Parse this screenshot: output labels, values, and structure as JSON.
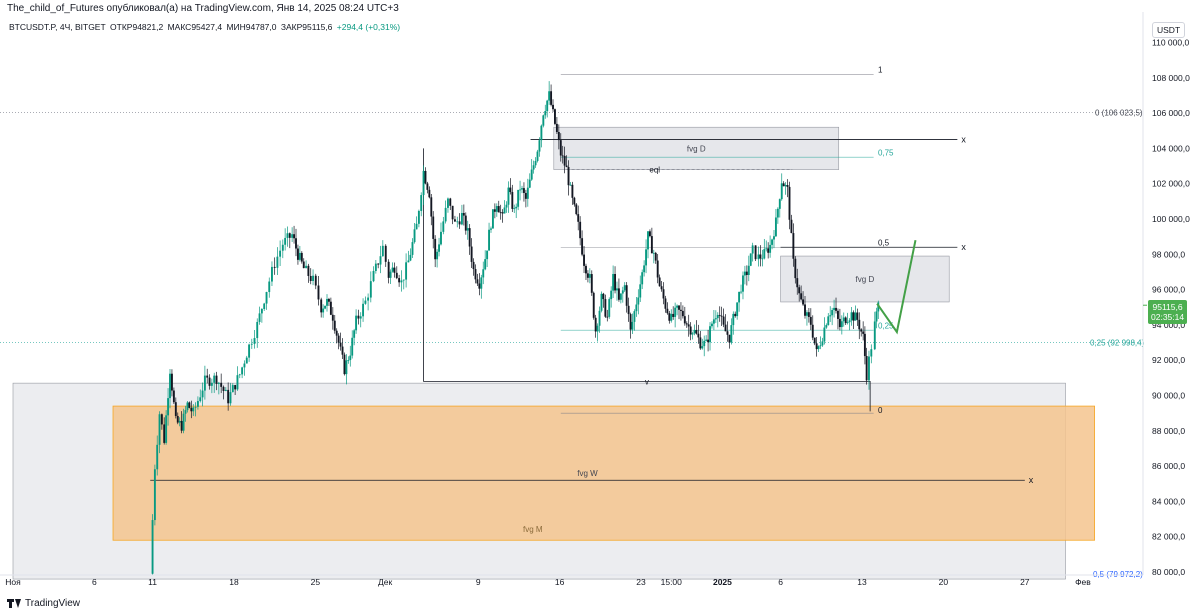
{
  "caption": "The_child_of_Futures опубликовал(а) на TradingView.com, Янв 14, 2025 08:24 UTC+3",
  "header": {
    "symbol": "BTCUSDT.P, 4Ч, BITGET",
    "open": "ОТКР94821,2",
    "high": "МАКС95427,4",
    "low": "МИН94787,0",
    "close": "ЗАКР95115,6",
    "change": "+294,4 (+0,31%)"
  },
  "currency": "USDT",
  "price_badge": {
    "price": "95115,6",
    "countdown": "02:35:14"
  },
  "footer": {
    "brand": "TradingView"
  },
  "colors": {
    "up": "#089981",
    "down": "#131722",
    "fvg_m_fill": "#f5c48e",
    "fvg_m_stroke": "#f5a623",
    "zone_fill": "#e6e7eb",
    "zone_stroke": "#9598a1",
    "projection": "#43a047",
    "fib_green": "#26a69a"
  },
  "chart_data": {
    "type": "candlestick",
    "ylim": [
      80000,
      112000
    ],
    "y_ticks": [
      80000,
      82000,
      84000,
      86000,
      88000,
      90000,
      92000,
      94000,
      96000,
      98000,
      100000,
      102000,
      104000,
      106000,
      108000,
      110000
    ],
    "y_tick_labels": [
      "80 000,0",
      "82 000,0",
      "84 000,0",
      "86 000,0",
      "88 000,0",
      "90 000,0",
      "92 000,0",
      "94 000,0",
      "96 000,0",
      "98 000,0",
      "100 000,0",
      "102 000,0",
      "104 000,0",
      "106 000,0",
      "108 000,0",
      "110 000,0"
    ],
    "x_ticks": [
      {
        "label": "Ноя",
        "t": 0
      },
      {
        "label": "6",
        "t": 7
      },
      {
        "label": "11",
        "t": 12
      },
      {
        "label": "18",
        "t": 19
      },
      {
        "label": "25",
        "t": 26
      },
      {
        "label": "Дек",
        "t": 32
      },
      {
        "label": "9",
        "t": 40
      },
      {
        "label": "16",
        "t": 47
      },
      {
        "label": "23",
        "t": 54
      },
      {
        "label": "15:00",
        "t": 56.6
      },
      {
        "label": "2025",
        "t": 61
      },
      {
        "label": "6",
        "t": 66
      },
      {
        "label": "13",
        "t": 73
      },
      {
        "label": "20",
        "t": 80
      },
      {
        "label": "27",
        "t": 87
      },
      {
        "label": "Фев",
        "t": 92
      }
    ],
    "path": [
      [
        11.8,
        79900
      ],
      [
        12.2,
        86000
      ],
      [
        12.6,
        89000
      ],
      [
        13.0,
        87500
      ],
      [
        13.5,
        91500
      ],
      [
        14.0,
        88500
      ],
      [
        14.5,
        88300
      ],
      [
        15.0,
        89500
      ],
      [
        15.5,
        89000
      ],
      [
        16.5,
        90800
      ],
      [
        17.5,
        91000
      ],
      [
        18.5,
        89800
      ],
      [
        19.5,
        91200
      ],
      [
        20.3,
        92800
      ],
      [
        21.0,
        94000
      ],
      [
        21.8,
        96000
      ],
      [
        22.5,
        97500
      ],
      [
        23.2,
        98600
      ],
      [
        24.0,
        99100
      ],
      [
        24.5,
        98000
      ],
      [
        25.0,
        97200
      ],
      [
        25.8,
        96500
      ],
      [
        26.5,
        95000
      ],
      [
        27.0,
        95300
      ],
      [
        27.5,
        94500
      ],
      [
        28.0,
        93000
      ],
      [
        28.5,
        91500
      ],
      [
        29.0,
        92500
      ],
      [
        29.5,
        94200
      ],
      [
        30.3,
        95300
      ],
      [
        31.0,
        96800
      ],
      [
        31.8,
        98400
      ],
      [
        32.3,
        96800
      ],
      [
        32.8,
        97300
      ],
      [
        33.4,
        96400
      ],
      [
        34.0,
        97600
      ],
      [
        34.7,
        99600
      ],
      [
        35.3,
        102700
      ],
      [
        35.8,
        101500
      ],
      [
        36.3,
        97600
      ],
      [
        36.8,
        99300
      ],
      [
        37.4,
        101000
      ],
      [
        38.0,
        99700
      ],
      [
        38.6,
        100200
      ],
      [
        39.1,
        99200
      ],
      [
        39.6,
        97100
      ],
      [
        40.1,
        96400
      ],
      [
        40.6,
        97800
      ],
      [
        41.1,
        99800
      ],
      [
        41.6,
        101000
      ],
      [
        42.1,
        100000
      ],
      [
        42.6,
        101600
      ],
      [
        43.1,
        100400
      ],
      [
        43.6,
        101800
      ],
      [
        44.1,
        101100
      ],
      [
        44.6,
        102600
      ],
      [
        45.1,
        104000
      ],
      [
        45.6,
        106100
      ],
      [
        46.1,
        107000
      ],
      [
        46.6,
        105400
      ],
      [
        47.1,
        103700
      ],
      [
        47.6,
        102800
      ],
      [
        48.1,
        101000
      ],
      [
        48.6,
        99600
      ],
      [
        49.1,
        97600
      ],
      [
        49.6,
        96600
      ],
      [
        50.1,
        93700
      ],
      [
        50.6,
        95500
      ],
      [
        51.1,
        94400
      ],
      [
        51.6,
        96700
      ],
      [
        52.1,
        95300
      ],
      [
        52.6,
        96200
      ],
      [
        53.1,
        93600
      ],
      [
        53.6,
        95300
      ],
      [
        54.1,
        96900
      ],
      [
        54.6,
        99000
      ],
      [
        55.1,
        98100
      ],
      [
        55.6,
        96200
      ],
      [
        56.1,
        95100
      ],
      [
        56.6,
        94300
      ],
      [
        57.1,
        94800
      ],
      [
        57.6,
        94600
      ],
      [
        58.1,
        93900
      ],
      [
        58.6,
        93600
      ],
      [
        59.1,
        93000
      ],
      [
        59.6,
        92900
      ],
      [
        60.1,
        94100
      ],
      [
        60.6,
        94900
      ],
      [
        61.1,
        93800
      ],
      [
        61.6,
        93300
      ],
      [
        62.1,
        94800
      ],
      [
        62.6,
        96200
      ],
      [
        63.1,
        97000
      ],
      [
        63.6,
        98200
      ],
      [
        64.1,
        97800
      ],
      [
        64.6,
        98000
      ],
      [
        65.1,
        98500
      ],
      [
        65.6,
        99800
      ],
      [
        66.1,
        102200
      ],
      [
        66.6,
        101600
      ],
      [
        67.1,
        97500
      ],
      [
        67.6,
        95700
      ],
      [
        68.1,
        94600
      ],
      [
        68.6,
        94100
      ],
      [
        69.1,
        92400
      ],
      [
        69.6,
        93400
      ],
      [
        70.1,
        94700
      ],
      [
        70.6,
        94900
      ],
      [
        71.1,
        93900
      ],
      [
        71.6,
        94400
      ],
      [
        72.1,
        94600
      ],
      [
        72.6,
        94300
      ],
      [
        73.1,
        93300
      ],
      [
        73.4,
        91200
      ],
      [
        73.8,
        92800
      ],
      [
        74.1,
        94000
      ],
      [
        74.4,
        95100
      ]
    ],
    "annotations": {
      "fvg_M": {
        "label": "fvg M",
        "t0": 8.6,
        "t1": 93,
        "p_top": 89400,
        "p_bot": 81800
      },
      "fvg_W": {
        "label": "fvg W",
        "t0": 11.8,
        "t1": 87,
        "p": 85200,
        "end": "x"
      },
      "fvg_D_top": {
        "label": "fvg D",
        "t0": 46.5,
        "t1": 71,
        "p_top": 105200,
        "p_bot": 102800
      },
      "fvg_D_right": {
        "label": "fvg D",
        "t0": 66,
        "t1": 80.5,
        "p_top": 97900,
        "p_bot": 95300
      },
      "grey_zone": {
        "t0": 0,
        "t1": 90.5,
        "p_top": 90700,
        "p_bot": 79600
      },
      "line_x_top": {
        "t0": 44.5,
        "t1": 81.2,
        "p": 104500,
        "end": "x"
      },
      "line_x_mid": {
        "t0": 66,
        "t1": 81.2,
        "p": 98400,
        "end": "x"
      },
      "eql": {
        "label": "eql",
        "t0": 47.6,
        "t1": 67,
        "p": 102800
      },
      "v_line": {
        "label": "v",
        "t0": 35.3,
        "t1": 73.7,
        "p": 90800,
        "bracket_top": 104000
      },
      "dotted_top": {
        "price": 106023.5,
        "label": "0 (106 023,5)"
      },
      "dotted_025": {
        "price": 92998.4,
        "label": "0,25 (92 998,4)"
      },
      "dotted_05_bottom": {
        "label": "0,5 (79 972,2)"
      },
      "fib_labels": [
        {
          "label": "1",
          "t": 74.2,
          "p": 108300
        },
        {
          "label": "0,75",
          "t": 74.2,
          "p": 103600,
          "color": "green"
        },
        {
          "label": "0,5",
          "t": 74.2,
          "p": 98500
        },
        {
          "label": "0,25",
          "t": 74.2,
          "p": 93800,
          "color": "green"
        },
        {
          "label": "0",
          "t": 74.2,
          "p": 89000
        }
      ],
      "fib_lines": [
        {
          "t0": 47.1,
          "t1": 74.0,
          "p": 108200
        },
        {
          "t0": 47.1,
          "t1": 74.0,
          "p": 103500
        },
        {
          "t0": 47.1,
          "t1": 74.0,
          "p": 98400
        },
        {
          "t0": 47.1,
          "t1": 74.0,
          "p": 93700
        },
        {
          "t0": 47.1,
          "t1": 74.0,
          "p": 89000
        }
      ],
      "projection": [
        [
          74.3,
          95200
        ],
        [
          76.0,
          93600
        ],
        [
          77.6,
          98800
        ]
      ]
    }
  }
}
